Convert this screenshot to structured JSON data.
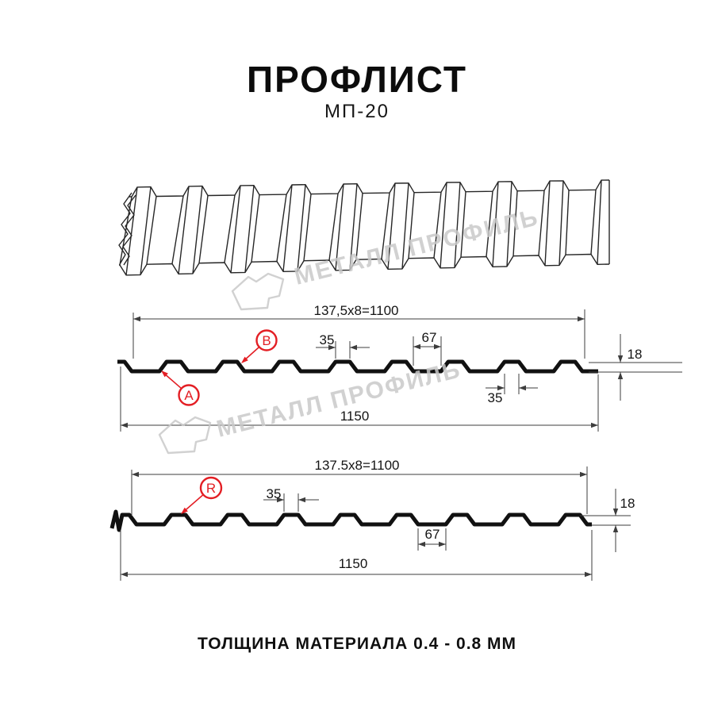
{
  "header": {
    "title": "ПРОФЛИСТ",
    "subtitle": "МП-20"
  },
  "footer": {
    "text": "ТОЛЩИНА МАТЕРИАЛА 0.4 - 0.8 ММ"
  },
  "watermark": {
    "text": "МЕТАЛЛ ПРОФИЛЬ",
    "color": "#c9c9c9"
  },
  "colors": {
    "accent_red": "#e31e24",
    "drawing_line": "#3d3d3d",
    "profile_line": "#111111"
  },
  "section_a": {
    "coverage_width": "137,5x8=1100",
    "rib_top_width": "35",
    "rib_bottom_width": "67",
    "rib_height": "18",
    "rib_top_width_2": "35",
    "overall_width": "1150",
    "label_a": "A",
    "label_b": "B"
  },
  "section_r": {
    "coverage_width": "137.5x8=1100",
    "rib_top_width": "35",
    "rib_bottom_width": "67",
    "rib_height": "18",
    "overall_width": "1150",
    "label_r": "R"
  }
}
